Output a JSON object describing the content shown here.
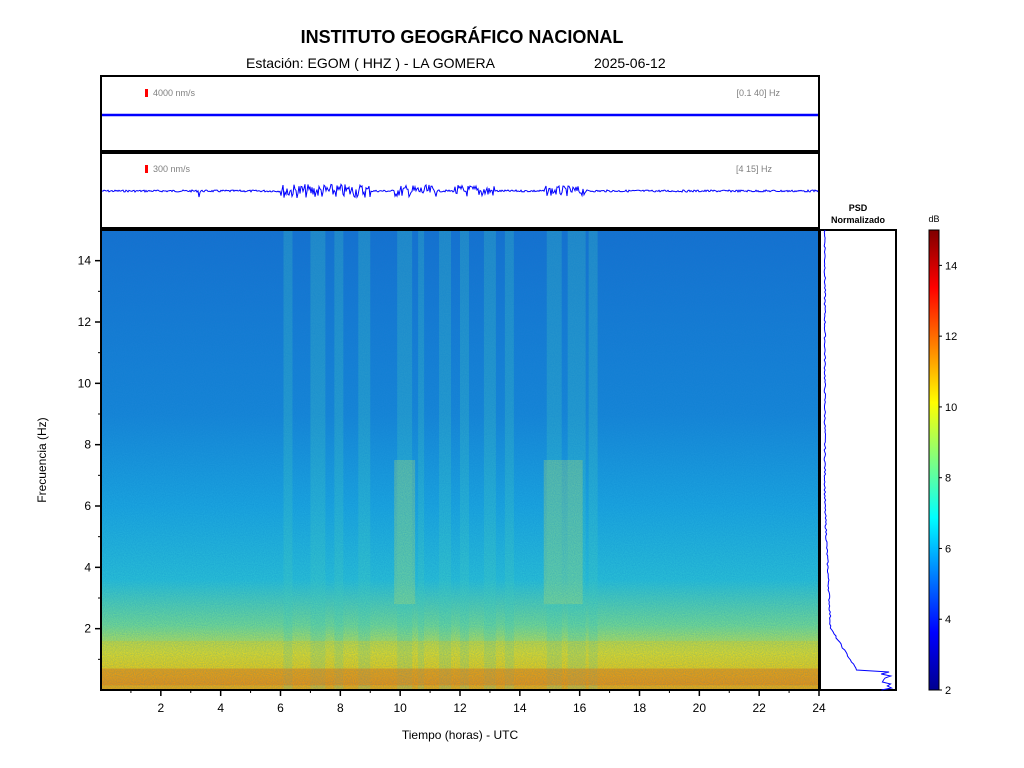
{
  "header": {
    "title": "INSTITUTO GEOGRÁFICO NACIONAL",
    "station_line": "Estación:  EGOM ( HHZ ) - LA GOMERA",
    "date": "2025-06-12"
  },
  "trace1": {
    "amplitude_label": "4000 nm/s",
    "band_label": "[0.1 40] Hz"
  },
  "trace2": {
    "amplitude_label": "300 nm/s",
    "band_label": "[4 15] Hz"
  },
  "psd": {
    "title_line1": "PSD",
    "title_line2": "Normalizado"
  },
  "colorbar": {
    "unit": "dB",
    "ticks": [
      2,
      4,
      6,
      8,
      10,
      12,
      14
    ],
    "range": [
      2,
      15
    ],
    "colormap": "jet"
  },
  "chart_data": {
    "type": "heatmap",
    "title": "",
    "xlabel": "Tiempo (horas) - UTC",
    "ylabel": "Frecuencia  (Hz)",
    "xlim": [
      0,
      24
    ],
    "ylim": [
      0,
      15
    ],
    "xticks": [
      2,
      4,
      6,
      8,
      10,
      12,
      14,
      16,
      18,
      20,
      22,
      24
    ],
    "yticks": [
      2,
      4,
      6,
      8,
      10,
      12,
      14
    ],
    "colors": {
      "axes": "#000000",
      "trace": "#0000ff",
      "marker": "#ff0000"
    }
  }
}
